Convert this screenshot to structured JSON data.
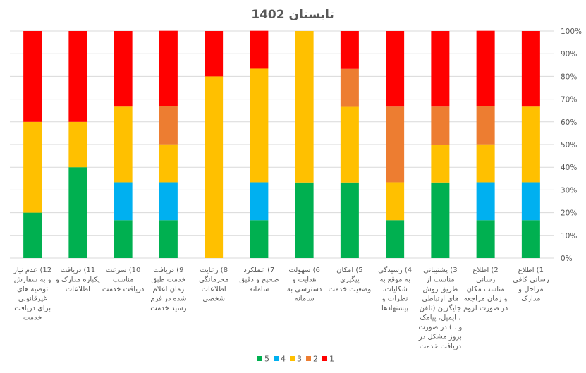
{
  "chart_data": {
    "type": "bar",
    "stacked": true,
    "percent_stacked": true,
    "title": "تابستان 1402",
    "xlabel": "",
    "ylabel": "",
    "ylim": [
      0,
      100
    ],
    "y_ticks": [
      "0%",
      "10%",
      "20%",
      "30%",
      "40%",
      "50%",
      "60%",
      "70%",
      "80%",
      "90%",
      "100%"
    ],
    "y_axis_side": "right",
    "x_axis_direction": "right-to-left",
    "grid": true,
    "legend_position": "bottom",
    "legend_order": [
      "5",
      "4",
      "3",
      "2",
      "1"
    ],
    "categories": [
      {
        "label": "1) اطلاع رسانی کافی مراحل و مدارک",
        "lines": [
          "1) اطلاع",
          "رسانی کافی",
          "مراحل و",
          "مدارک"
        ]
      },
      {
        "label": "2) اطلاع رسانی مناسب مکان و زمان مراجعه در صورت لزوم",
        "lines": [
          "2) اطلاع",
          "رسانی",
          "مناسب مکان",
          "و زمان مراجعه",
          "در صورت لزوم"
        ]
      },
      {
        "label": "3) پشتیبانی مناسب از طریق روش های ارتباطی جایگزین (تلفن ، ایمیل، پیامک و ..) در صورت بروز مشکل در دریافت خدمت",
        "lines": [
          "3) پشتیبانی",
          "مناسب از",
          "طریق روش",
          "های ارتباطی",
          "جایگزین (تلفن",
          "، ایمیل، پیامک",
          "و ..) در صورت",
          "بروز مشکل در",
          "دریافت خدمت"
        ]
      },
      {
        "label": "4) رسیدگی به موقع به شکایات، نظرات و پیشنهادها",
        "lines": [
          "4) رسیدگی",
          "به موقع به",
          "شکایات،",
          "نظرات و",
          "پیشنهادها"
        ]
      },
      {
        "label": "5) امکان پیگیری وضعیت خدمت",
        "lines": [
          "5) امکان",
          "پیگیری",
          "وضعیت خدمت"
        ]
      },
      {
        "label": "6) سهولت هدایت و دسترسی به سامانه",
        "lines": [
          "6) سهولت",
          "هدایت و",
          "دسترسی به",
          "سامانه"
        ]
      },
      {
        "label": "7) عملکرد صحیح و دقیق سامانه",
        "lines": [
          "7) عملکرد",
          "صحیح و دقیق",
          "سامانه"
        ]
      },
      {
        "label": "8) رعایت محرمانگی اطلاعات شخصی",
        "lines": [
          "8) رعایت",
          "محرمانگی",
          "اطلاعات",
          "شخصی"
        ]
      },
      {
        "label": "9) دریافت خدمت طبق زمان اعلام شده در فرم رسید خدمت",
        "lines": [
          "9) دریافت",
          "خدمت طبق",
          "زمان اعلام",
          "شده در فرم",
          "رسید خدمت"
        ]
      },
      {
        "label": "10) سرعت مناسب دریافت خدمت",
        "lines": [
          "10) سرعت",
          "مناسب",
          "دریافت خدمت"
        ]
      },
      {
        "label": "11) دریافت یکباره مدارک و اطلاعات",
        "lines": [
          "11) دریافت",
          "یکباره مدارک و",
          "اطلاعات"
        ]
      },
      {
        "label": "12) عدم نیاز به سفارش و توصیه های غیرقانونی برای دریافت خدمت",
        "lines": [
          "12) عدم نیاز",
          "و به سفارش",
          "توصیه های",
          "غیرقانونی",
          "برای دریافت",
          "خدمت"
        ]
      }
    ],
    "series": [
      {
        "name": "5",
        "color": "#00B050",
        "values": [
          16.7,
          16.7,
          33.3,
          16.7,
          33.3,
          33.3,
          16.7,
          0,
          16.7,
          16.7,
          40,
          20
        ]
      },
      {
        "name": "4",
        "color": "#00B0F0",
        "values": [
          16.7,
          16.7,
          0,
          0,
          0,
          0,
          16.7,
          0,
          16.7,
          16.7,
          0,
          0
        ]
      },
      {
        "name": "3",
        "color": "#FFC000",
        "values": [
          33.3,
          16.7,
          16.7,
          16.7,
          33.3,
          66.7,
          50,
          80,
          16.7,
          33.3,
          20,
          40
        ]
      },
      {
        "name": "2",
        "color": "#ED7D31",
        "values": [
          0,
          16.7,
          16.7,
          33.3,
          16.7,
          0,
          0,
          0,
          16.7,
          0,
          0,
          0
        ]
      },
      {
        "name": "1",
        "color": "#FF0000",
        "values": [
          33.3,
          33.3,
          33.3,
          33.3,
          16.7,
          0,
          16.7,
          20,
          33.3,
          33.3,
          40,
          40
        ]
      }
    ],
    "gridline_color": "#D9D9D9"
  }
}
